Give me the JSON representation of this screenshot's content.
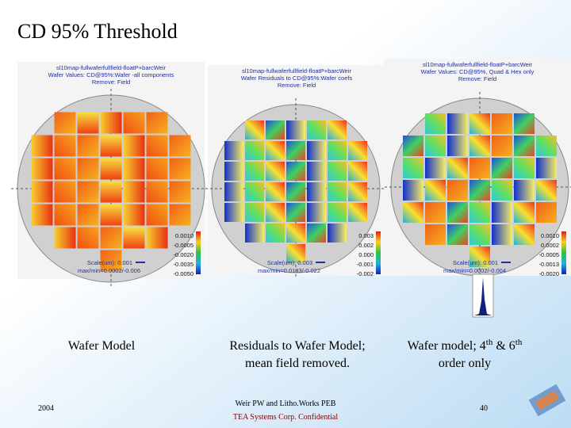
{
  "title": "CD 95% Threshold",
  "panels": [
    {
      "header": [
        "sl10map-fullwaferfullfield-floatP+barcWeir",
        "Wafer Values: CD@95%:Wafer -all components",
        "Remove: Field"
      ],
      "colorbar": [
        "0.0010",
        "-0.0005",
        "-0.0020",
        "-0.0035",
        "-0.0050"
      ],
      "scale": "Scale(um): 0.001",
      "maxmin": "max/min=0.0002/-0.006",
      "caption": [
        "Wafer Model"
      ]
    },
    {
      "header": [
        "sl10map-fullwaferfullfield-floatP+barcWeir",
        "Wafer Residuals to CD@95%:Wafer coefs",
        "Remove: Field"
      ],
      "colorbar": [
        "0.003",
        "0.002",
        "0.000",
        "-0.001",
        "-0.002"
      ],
      "scale": "Scale(um): 0.003",
      "maxmin": "max/min=0.0133/-0.022",
      "caption": [
        "Residuals to Wafer Model;",
        "mean field removed."
      ]
    },
    {
      "header": [
        "sl10map-fullwaferfullfield-floatP+barcWeir",
        "Wafer Values: CD@95%, Quad & Hex only",
        "Remove: Field"
      ],
      "colorbar": [
        "0.0010",
        "0.0002",
        "-0.0005",
        "-0.0013",
        "-0.0020"
      ],
      "scale": "Scale(um): 0.001",
      "maxmin": "max/min=0.0002/-0.004",
      "caption_parts": [
        "Wafer model; 4",
        "th",
        " & 6",
        "th"
      ],
      "caption2": "order only"
    }
  ],
  "footer": {
    "date": "2004",
    "center": [
      "Weir PW and Litho.Works PEB",
      "TEA Systems Corp. Confidential"
    ],
    "page": "40"
  }
}
